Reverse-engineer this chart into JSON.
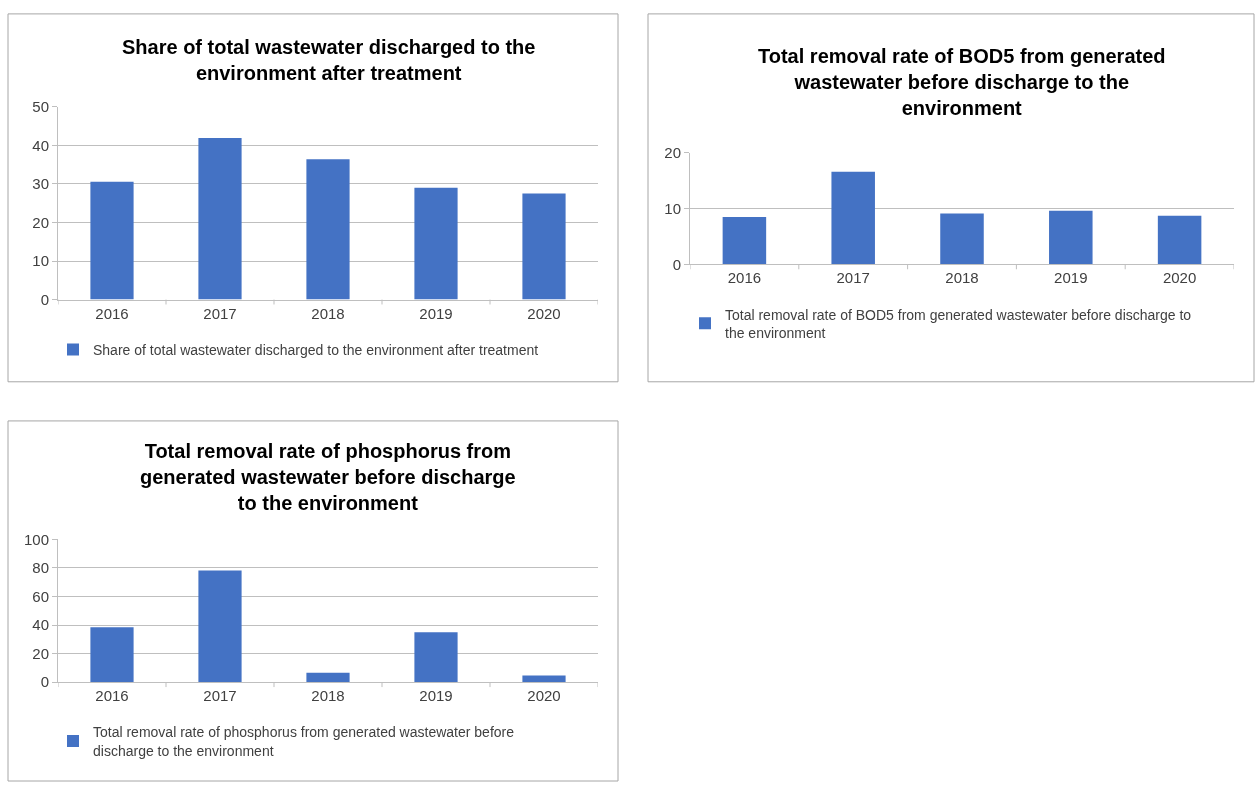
{
  "chart_data": [
    {
      "type": "bar",
      "title": "Share of total wastewater discharged to the environment after treatment",
      "categories": [
        "2016",
        "2017",
        "2018",
        "2019",
        "2020"
      ],
      "series": [
        {
          "name": "Share of total wastewater discharged to the environment after treatment",
          "color": "#4472c4",
          "values": [
            30.6,
            41.9,
            36.4,
            29.0,
            27.5
          ]
        }
      ],
      "ylim": [
        0,
        50
      ],
      "yticks": [
        0,
        10,
        20,
        30,
        40,
        50
      ],
      "grid": "y",
      "legend": "bottom"
    },
    {
      "type": "bar",
      "title": "Total removal rate of BOD5 from generated wastewater before discharge to the environment",
      "categories": [
        "2016",
        "2017",
        "2018",
        "2019",
        "2020"
      ],
      "series": [
        {
          "name": "Total removal rate of BOD5 from generated wastewater before discharge to the environment",
          "color": "#4472c4",
          "values": [
            8.5,
            16.6,
            9.1,
            9.6,
            8.7
          ]
        }
      ],
      "ylim": [
        0,
        20
      ],
      "yticks": [
        0,
        10,
        20
      ],
      "grid": "y",
      "legend": "bottom"
    },
    {
      "type": "bar",
      "title": "Total removal rate of phosphorus from generated wastewater before discharge to the environment",
      "categories": [
        "2016",
        "2017",
        "2018",
        "2019",
        "2020"
      ],
      "series": [
        {
          "name": "Total removal rate of phosphorus from generated wastewater before discharge to the environment",
          "color": "#4472c4",
          "values": [
            38.4,
            78.2,
            6.6,
            35.0,
            4.7
          ]
        }
      ],
      "ylim": [
        0,
        100
      ],
      "yticks": [
        0,
        20,
        40,
        60,
        80,
        100
      ],
      "grid": "y",
      "legend": "bottom"
    }
  ]
}
